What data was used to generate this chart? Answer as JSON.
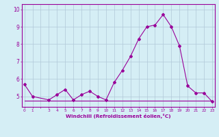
{
  "xlabel": "Windchill (Refroidissement éolien,°C)",
  "ylabel": "",
  "x_values": [
    0,
    1,
    3,
    4,
    5,
    6,
    7,
    8,
    9,
    10,
    11,
    12,
    13,
    14,
    15,
    16,
    17,
    18,
    19,
    20,
    21,
    22,
    23
  ],
  "y_values": [
    5.7,
    5.0,
    4.8,
    5.1,
    5.4,
    4.8,
    5.1,
    5.3,
    5.0,
    4.8,
    5.8,
    6.5,
    7.3,
    8.3,
    9.0,
    9.1,
    9.7,
    9.0,
    7.9,
    5.6,
    5.2,
    5.2,
    4.7
  ],
  "y2_values": [
    4.75,
    4.75,
    4.75,
    4.75,
    4.75,
    4.75,
    4.75,
    4.75,
    4.75,
    4.75,
    4.75,
    4.75,
    4.75,
    4.75,
    4.75,
    4.75,
    4.75,
    4.75,
    4.75,
    4.75,
    4.75,
    4.75,
    4.75
  ],
  "line_color": "#990099",
  "bg_color": "#d5eef5",
  "grid_color": "#b0c8d8",
  "ylim": [
    4.4,
    10.3
  ],
  "yticks": [
    5,
    6,
    7,
    8,
    9,
    10
  ],
  "xtick_labels": [
    "0",
    "1",
    "",
    "3",
    "4",
    "5",
    "6",
    "7",
    "8",
    "9",
    "10",
    "11",
    "12",
    "13",
    "14",
    "15",
    "16",
    "17",
    "18",
    "19",
    "20",
    "21",
    "22",
    "23"
  ],
  "xtick_positions": [
    0,
    1,
    2,
    3,
    4,
    5,
    6,
    7,
    8,
    9,
    10,
    11,
    12,
    13,
    14,
    15,
    16,
    17,
    18,
    19,
    20,
    21,
    22,
    23
  ]
}
